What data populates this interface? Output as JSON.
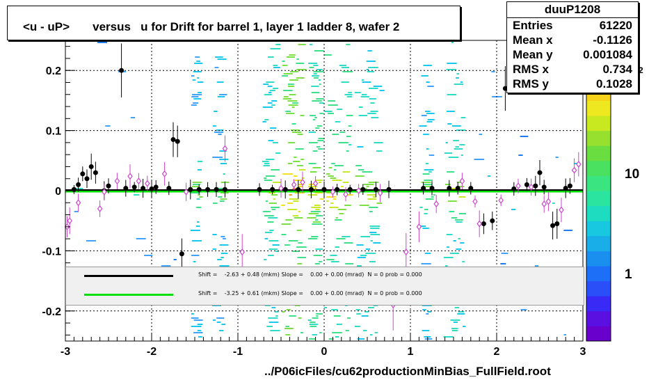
{
  "title": "<u - uP>       versus   u for Drift for barrel 1, layer 1 ladder 8, wafer 2",
  "stats": {
    "name": "duuP1208",
    "rows": [
      {
        "label": "Entries",
        "value": "61220"
      },
      {
        "label": "Mean x",
        "value": "-0.1126"
      },
      {
        "label": "Mean y",
        "value": "0.001084"
      },
      {
        "label": "RMS x",
        "value": "0.734"
      },
      {
        "label": "RMS y",
        "value": "0.1028"
      }
    ]
  },
  "legend": [
    {
      "color": "#000000",
      "text": "Shift =    -2.63 + 0.48 (mkm) Slope =    0.00 + 0.00 (mrad)  N = 0 prob = 0.000"
    },
    {
      "color": "#00e000",
      "text": "Shift =    -3.25 + 0.61 (mkm) Slope =    0.00 + 0.00 (mrad)  N = 0 prob = 0.000"
    }
  ],
  "footer": "../P06icFiles/cu62productionMinBias_FullField.root",
  "colorscale_labels": [
    "10",
    "1"
  ],
  "colorscale_exponent": "2",
  "chart_data": {
    "type": "scatter",
    "title": "<u - uP>       versus   u for Drift for barrel 1, layer 1 ladder 8, wafer 2",
    "xlim": [
      -3,
      3
    ],
    "ylim": [
      -0.25,
      0.25
    ],
    "x_ticks": [
      "-3",
      "-2",
      "-1",
      "0",
      "1",
      "2",
      "3"
    ],
    "y_ticks": [
      "0.2",
      "0.1",
      "0",
      "-0.1",
      "-0.2"
    ],
    "grid": true,
    "series": [
      {
        "marker": "filled-circle",
        "color": "#000000",
        "points": [
          [
            -2.9,
            0.002
          ],
          [
            -2.85,
            0.01
          ],
          [
            -2.8,
            0.028
          ],
          [
            -2.75,
            0.02
          ],
          [
            -2.7,
            0.04
          ],
          [
            -2.65,
            0.03
          ],
          [
            -2.55,
            0.0
          ],
          [
            -2.5,
            0.008
          ],
          [
            -2.35,
            0.2
          ],
          [
            -2.3,
            0.004
          ],
          [
            -2.2,
            0.006
          ],
          [
            -2.1,
            0.004
          ],
          [
            -2.0,
            0.003
          ],
          [
            -1.95,
            0.006
          ],
          [
            -1.8,
            0.004
          ],
          [
            -1.75,
            0.085
          ],
          [
            -1.7,
            0.082
          ],
          [
            -1.65,
            -0.105
          ],
          [
            -1.55,
            0.002
          ],
          [
            -1.45,
            0.002
          ],
          [
            -1.35,
            0.002
          ],
          [
            -1.25,
            0.002
          ],
          [
            -1.15,
            0.002
          ],
          [
            -0.75,
            0.002
          ],
          [
            -0.6,
            0.002
          ],
          [
            -0.45,
            0.002
          ],
          [
            -0.3,
            0.002
          ],
          [
            -0.15,
            0.002
          ],
          [
            0.0,
            0.002
          ],
          [
            0.15,
            0.002
          ],
          [
            0.3,
            0.002
          ],
          [
            0.45,
            0.002
          ],
          [
            0.6,
            0.002
          ],
          [
            0.75,
            0.002
          ],
          [
            1.15,
            0.004
          ],
          [
            1.25,
            0.004
          ],
          [
            1.45,
            0.004
          ],
          [
            1.55,
            0.004
          ],
          [
            1.7,
            0.004
          ],
          [
            1.85,
            -0.055
          ],
          [
            1.95,
            -0.05
          ],
          [
            2.1,
            0.17
          ],
          [
            2.2,
            0.003
          ],
          [
            2.35,
            0.01
          ],
          [
            2.45,
            0.008
          ],
          [
            2.5,
            0.03
          ],
          [
            2.55,
            0.006
          ],
          [
            2.65,
            -0.058
          ],
          [
            2.7,
            -0.055
          ],
          [
            2.8,
            0.004
          ],
          [
            2.85,
            0.008
          ]
        ]
      },
      {
        "marker": "open-diamond",
        "color": "#cc44cc",
        "points": [
          [
            -2.98,
            -0.06
          ],
          [
            -2.95,
            -0.05
          ],
          [
            -2.85,
            -0.02
          ],
          [
            -2.6,
            -0.03
          ],
          [
            -2.55,
            -0.002
          ],
          [
            -2.4,
            0.016
          ],
          [
            -2.25,
            0.024
          ],
          [
            -2.15,
            0.016
          ],
          [
            -2.05,
            0.012
          ],
          [
            -1.85,
            0.028
          ],
          [
            -1.6,
            -0.002
          ],
          [
            -1.15,
            0.07
          ],
          [
            -0.95,
            -0.102
          ],
          [
            -0.5,
            0.004
          ],
          [
            -0.35,
            0.01
          ],
          [
            -0.25,
            0.014
          ],
          [
            -0.1,
            0.012
          ],
          [
            0.1,
            -0.002
          ],
          [
            0.25,
            -0.006
          ],
          [
            0.4,
            0.0
          ],
          [
            0.65,
            -0.004
          ],
          [
            0.95,
            -0.102
          ],
          [
            1.1,
            -0.06
          ],
          [
            1.3,
            -0.022
          ],
          [
            1.6,
            0.016
          ],
          [
            1.75,
            -0.018
          ],
          [
            1.8,
            -0.055
          ],
          [
            2.05,
            -0.016
          ],
          [
            2.25,
            0.008
          ],
          [
            2.4,
            0.006
          ],
          [
            2.55,
            -0.022
          ],
          [
            2.6,
            -0.018
          ],
          [
            2.75,
            -0.032
          ],
          [
            2.9,
            0.034
          ],
          [
            2.95,
            0.044
          ],
          [
            0.8,
            -0.19
          ]
        ]
      }
    ]
  }
}
